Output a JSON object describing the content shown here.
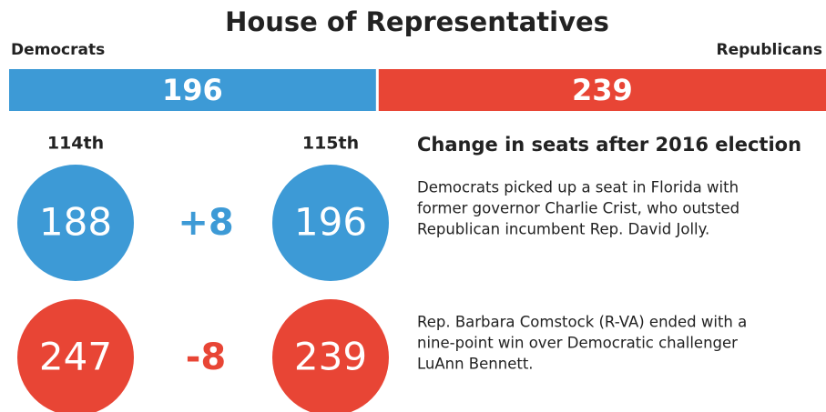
{
  "title": "House of Representatives",
  "parties": [
    {
      "name": "Democrats",
      "seats": 196,
      "color": "#3d9ad6"
    },
    {
      "name": "Republicans",
      "seats": 239,
      "color": "#e84535"
    }
  ],
  "columns": [
    "114th",
    "115th"
  ],
  "rows": [
    {
      "before": 188,
      "change": "+8",
      "after": 196,
      "color": "#3d9ad6",
      "text": [
        "Democrats picked up a seat in Florida with",
        "former governor Charlie Crist, who outsted",
        "Republican incumbent Rep. David Jolly."
      ]
    },
    {
      "before": 247,
      "change": "-8",
      "after": 239,
      "color": "#e84535",
      "text": [
        "Rep. Barbara Comstock (R-VA) ended with a",
        "nine-point win over Democratic challenger",
        "LuAnn Bennett."
      ]
    }
  ],
  "subtitle": "Change in seats after 2016 election"
}
